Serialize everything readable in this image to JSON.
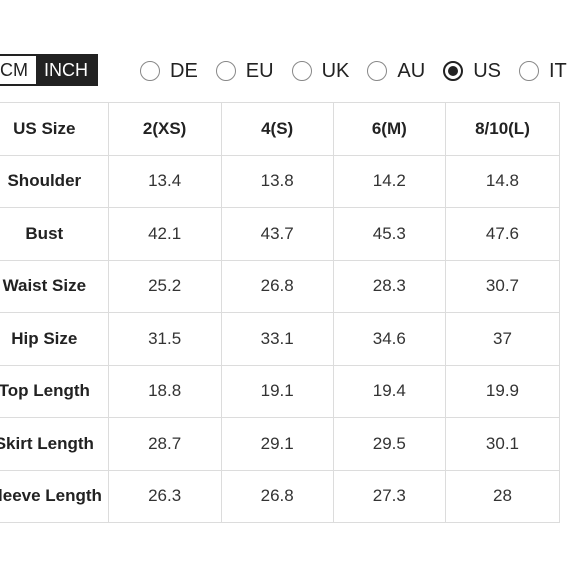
{
  "units": {
    "cm_label": "CM",
    "inch_label": "INCH",
    "selected": "INCH"
  },
  "regions": [
    {
      "label": "DE",
      "checked": false
    },
    {
      "label": "EU",
      "checked": false
    },
    {
      "label": "UK",
      "checked": false
    },
    {
      "label": "AU",
      "checked": false
    },
    {
      "label": "US",
      "checked": true
    },
    {
      "label": "IT",
      "checked": false
    }
  ],
  "table": {
    "header": [
      "US Size",
      "2(XS)",
      "4(S)",
      "6(M)",
      "8/10(L)"
    ],
    "rows": [
      {
        "label": "Shoulder",
        "values": [
          "13.4",
          "13.8",
          "14.2",
          "14.8"
        ]
      },
      {
        "label": "Bust",
        "values": [
          "42.1",
          "43.7",
          "45.3",
          "47.6"
        ]
      },
      {
        "label": "Waist Size",
        "values": [
          "25.2",
          "26.8",
          "28.3",
          "30.7"
        ]
      },
      {
        "label": "Hip Size",
        "values": [
          "31.5",
          "33.1",
          "34.6",
          "37"
        ]
      },
      {
        "label": "Top Length",
        "values": [
          "18.8",
          "19.1",
          "19.4",
          "19.9"
        ]
      },
      {
        "label": "Skirt Length",
        "values": [
          "28.7",
          "29.1",
          "29.5",
          "30.1"
        ]
      },
      {
        "label": "Sleeve Length",
        "values": [
          "26.3",
          "26.8",
          "27.3",
          "28"
        ]
      }
    ]
  }
}
